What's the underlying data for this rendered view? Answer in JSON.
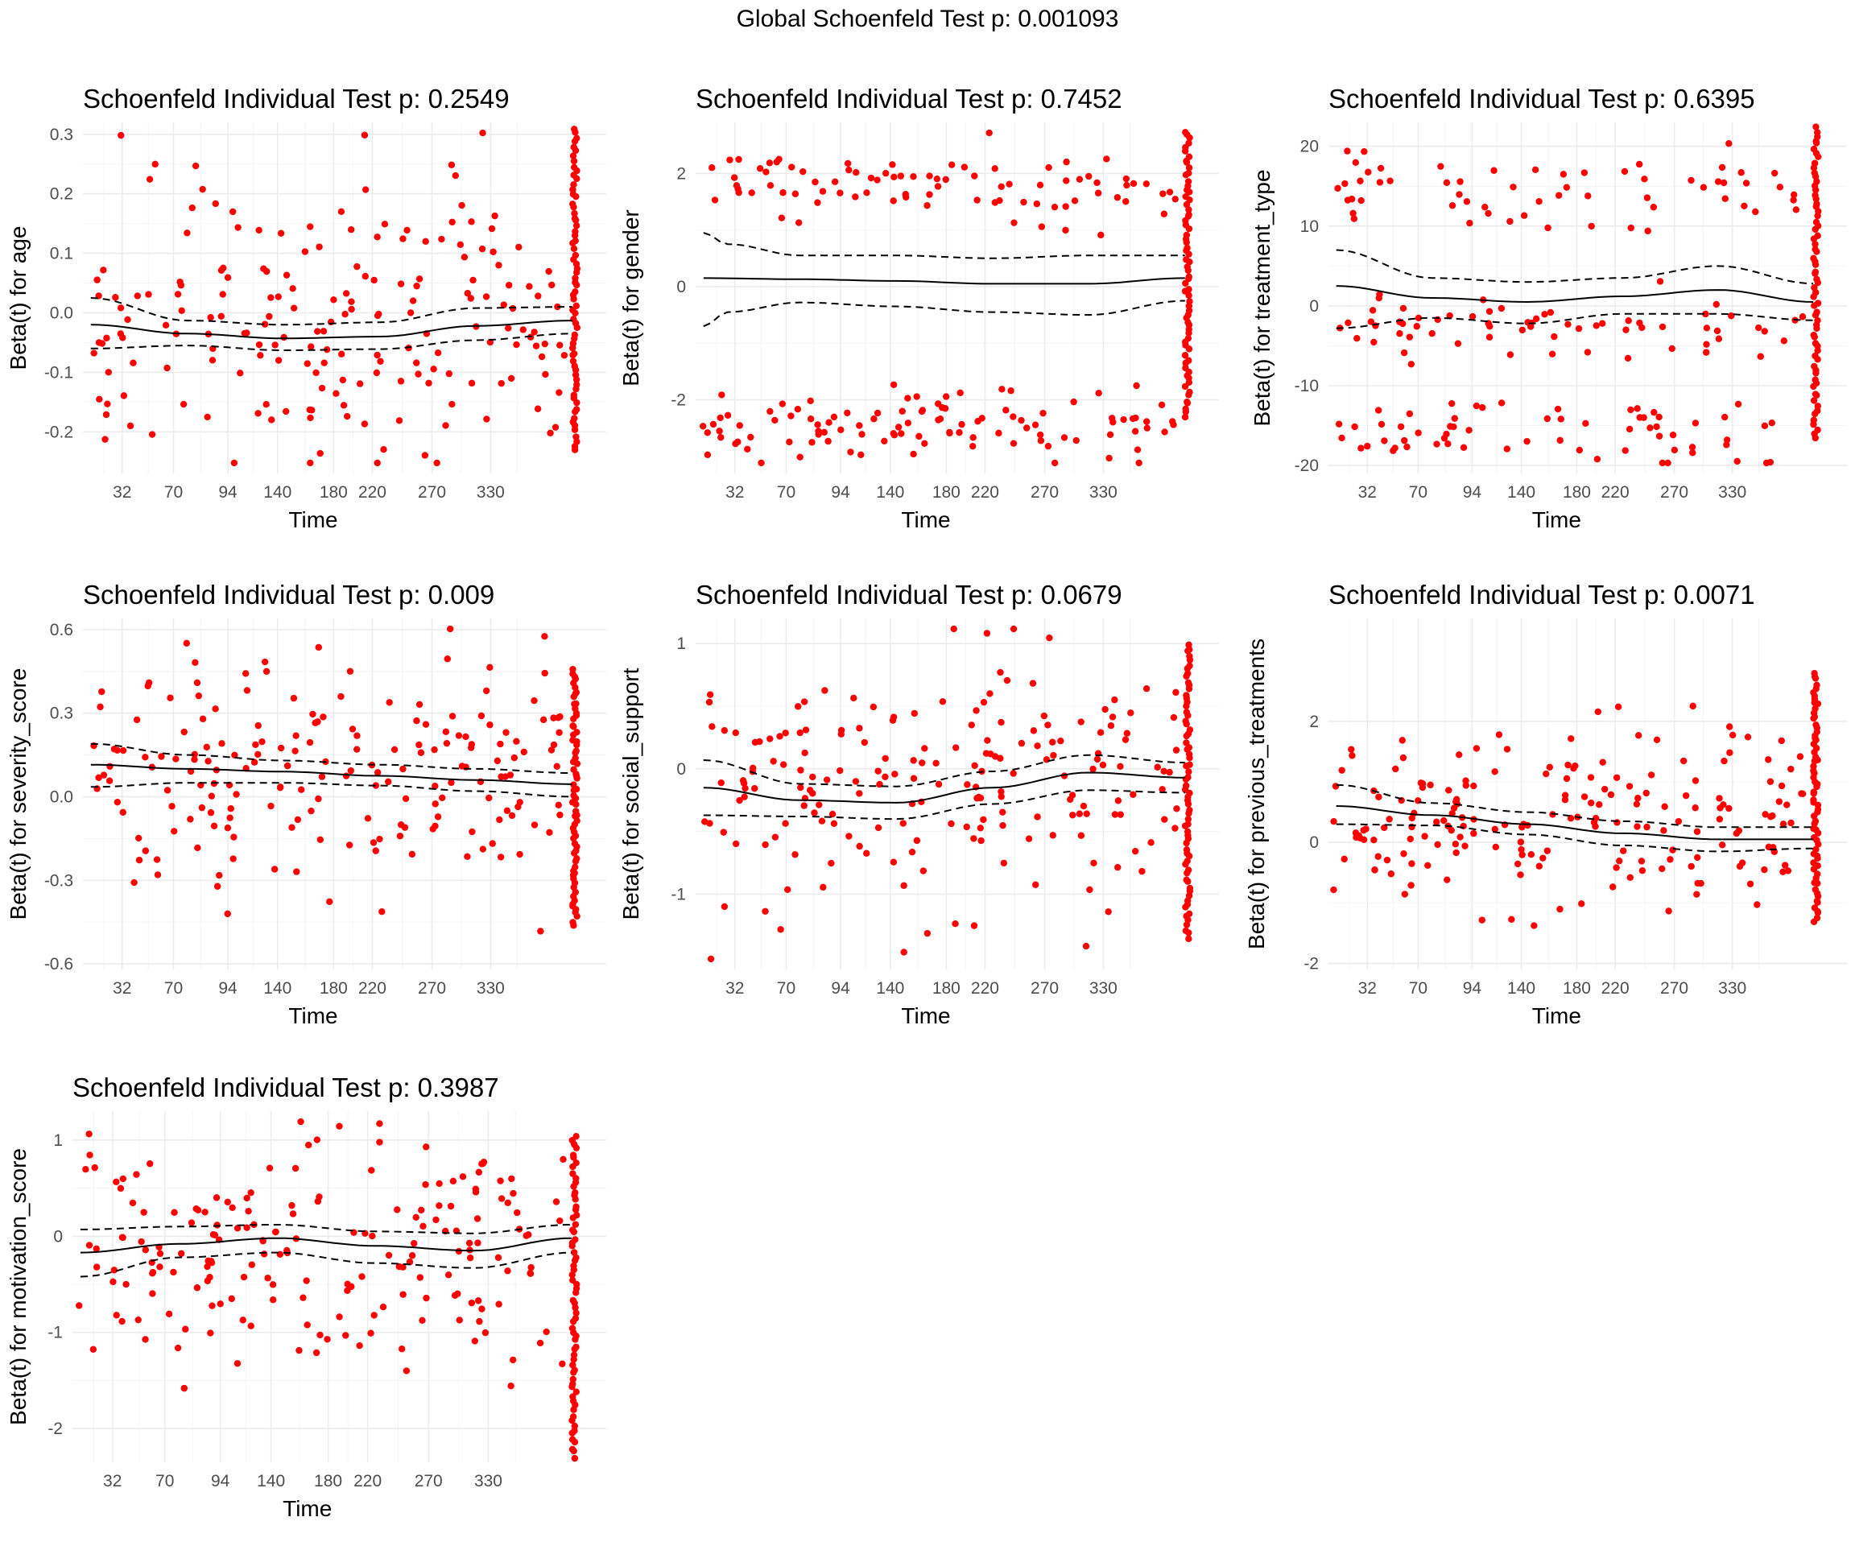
{
  "figure": {
    "title": "Global Schoenfeld Test p: 0.001093"
  },
  "chart_data": [
    {
      "type": "scatter",
      "title": "Schoenfeld Individual Test p: 0.2549",
      "xlabel": "Time",
      "ylabel": "Beta(t) for age",
      "x_ticks": [
        "32",
        "70",
        "94",
        "140",
        "180",
        "220",
        "270",
        "330"
      ],
      "y_ticks": [
        -0.2,
        -0.1,
        0.0,
        0.1,
        0.2,
        0.3
      ],
      "y_tick_labels": [
        "-0.2",
        "-0.1",
        "0.0",
        "0.1",
        "0.2",
        "0.3"
      ],
      "ylim": [
        -0.27,
        0.32
      ],
      "point_color": "#ff0000",
      "grid": true,
      "fit": {
        "x_ranks": [
          0,
          0.2,
          0.4,
          0.6,
          0.8,
          1.0
        ],
        "y": [
          -0.02,
          -0.035,
          -0.043,
          -0.04,
          -0.022,
          -0.013
        ]
      },
      "band_upper": {
        "x_ranks": [
          0,
          0.2,
          0.4,
          0.6,
          0.8,
          1.0
        ],
        "y": [
          0.025,
          -0.013,
          -0.02,
          -0.016,
          0.008,
          0.01
        ]
      },
      "band_lower": {
        "x_ranks": [
          0,
          0.2,
          0.4,
          0.6,
          0.8,
          1.0
        ],
        "y": [
          -0.06,
          -0.055,
          -0.063,
          -0.061,
          -0.046,
          -0.035
        ]
      },
      "band_style": "dashed",
      "points_seed": 11,
      "cluster_groups": [
        [
          0.04,
          0.13
        ],
        [
          -0.06,
          0.13
        ]
      ],
      "end_cluster_range": [
        -0.23,
        0.31
      ]
    },
    {
      "type": "scatter",
      "title": "Schoenfeld Individual Test p: 0.7452",
      "xlabel": "Time",
      "ylabel": "Beta(t) for gender",
      "x_ticks": [
        "32",
        "70",
        "94",
        "140",
        "180",
        "220",
        "270",
        "330"
      ],
      "y_ticks": [
        -2,
        0,
        2
      ],
      "y_tick_labels": [
        "-2",
        "0",
        "2"
      ],
      "ylim": [
        -3.3,
        2.9
      ],
      "point_color": "#ff0000",
      "grid": true,
      "fit": {
        "x_ranks": [
          0,
          0.2,
          0.4,
          0.6,
          0.8,
          1.0
        ],
        "y": [
          0.15,
          0.13,
          0.1,
          0.05,
          0.05,
          0.15
        ]
      },
      "band_upper": {
        "x_ranks": [
          0,
          0.05,
          0.2,
          0.4,
          0.6,
          0.8,
          1.0
        ],
        "y": [
          0.95,
          0.75,
          0.55,
          0.55,
          0.5,
          0.55,
          0.55
        ]
      },
      "band_lower": {
        "x_ranks": [
          0,
          0.05,
          0.2,
          0.4,
          0.6,
          0.8,
          1.0
        ],
        "y": [
          -0.7,
          -0.45,
          -0.28,
          -0.35,
          -0.45,
          -0.5,
          -0.25
        ]
      },
      "band_style": "dashed",
      "points_seed": 23,
      "cluster_groups": [
        [
          1.8,
          0.3
        ],
        [
          -2.5,
          0.3
        ]
      ],
      "end_cluster_range": [
        -2.3,
        2.75
      ]
    },
    {
      "type": "scatter",
      "title": "Schoenfeld Individual Test p: 0.6395",
      "xlabel": "Time",
      "ylabel": "Beta(t) for treatment_type",
      "x_ticks": [
        "32",
        "70",
        "94",
        "140",
        "180",
        "220",
        "270",
        "330"
      ],
      "y_ticks": [
        -20,
        -10,
        0,
        10,
        20
      ],
      "y_tick_labels": [
        "-20",
        "-10",
        "0",
        "10",
        "20"
      ],
      "ylim": [
        -21,
        23
      ],
      "point_color": "#ff0000",
      "grid": true,
      "fit": {
        "x_ranks": [
          0,
          0.2,
          0.4,
          0.6,
          0.8,
          1.0
        ],
        "y": [
          2.5,
          1.0,
          0.5,
          1.2,
          2.0,
          0.5
        ]
      },
      "band_upper": {
        "x_ranks": [
          0,
          0.2,
          0.4,
          0.6,
          0.8,
          1.0
        ],
        "y": [
          7.0,
          3.5,
          3.0,
          3.5,
          5.0,
          2.8
        ]
      },
      "band_lower": {
        "x_ranks": [
          0,
          0.2,
          0.4,
          0.6,
          0.8,
          1.0
        ],
        "y": [
          -2.8,
          -1.5,
          -2.2,
          -1.0,
          -1.0,
          -1.8
        ]
      },
      "band_style": "dashed",
      "points_seed": 37,
      "cluster_groups": [
        [
          15.5,
          3.0
        ],
        [
          -16.0,
          2.0
        ],
        [
          -3.0,
          2.5
        ]
      ],
      "end_cluster_range": [
        -16.5,
        22.5
      ]
    },
    {
      "type": "scatter",
      "title": "Schoenfeld Individual Test p: 0.009",
      "xlabel": "Time",
      "ylabel": "Beta(t) for severity_score",
      "x_ticks": [
        "32",
        "70",
        "94",
        "140",
        "180",
        "220",
        "270",
        "330"
      ],
      "y_ticks": [
        -0.6,
        -0.3,
        0.0,
        0.3,
        0.6
      ],
      "y_tick_labels": [
        "-0.6",
        "-0.3",
        "0.0",
        "0.3",
        "0.6"
      ],
      "ylim": [
        -0.62,
        0.64
      ],
      "point_color": "#ff0000",
      "grid": true,
      "fit": {
        "x_ranks": [
          0,
          0.2,
          0.4,
          0.6,
          0.8,
          1.0
        ],
        "y": [
          0.115,
          0.1,
          0.09,
          0.075,
          0.06,
          0.045
        ]
      },
      "band_upper": {
        "x_ranks": [
          0,
          0.2,
          0.4,
          0.6,
          0.8,
          1.0
        ],
        "y": [
          0.19,
          0.15,
          0.13,
          0.115,
          0.1,
          0.085
        ]
      },
      "band_lower": {
        "x_ranks": [
          0,
          0.2,
          0.4,
          0.6,
          0.8,
          1.0
        ],
        "y": [
          0.035,
          0.05,
          0.05,
          0.04,
          0.02,
          0.0
        ]
      },
      "band_style": "dashed",
      "points_seed": 41,
      "cluster_groups": [
        [
          0.09,
          0.2
        ]
      ],
      "end_cluster_range": [
        -0.46,
        0.46
      ]
    },
    {
      "type": "scatter",
      "title": "Schoenfeld Individual Test p: 0.0679",
      "xlabel": "Time",
      "ylabel": "Beta(t) for social_support",
      "x_ticks": [
        "32",
        "70",
        "94",
        "140",
        "180",
        "220",
        "270",
        "330"
      ],
      "y_ticks": [
        -1,
        0,
        1
      ],
      "y_tick_labels": [
        "-1",
        "0",
        "1"
      ],
      "ylim": [
        -1.6,
        1.2
      ],
      "point_color": "#ff0000",
      "grid": true,
      "fit": {
        "x_ranks": [
          0,
          0.2,
          0.4,
          0.6,
          0.8,
          1.0
        ],
        "y": [
          -0.15,
          -0.25,
          -0.27,
          -0.15,
          -0.03,
          -0.07
        ]
      },
      "band_upper": {
        "x_ranks": [
          0,
          0.2,
          0.4,
          0.6,
          0.8,
          1.0
        ],
        "y": [
          0.07,
          -0.12,
          -0.14,
          -0.02,
          0.11,
          0.05
        ]
      },
      "band_lower": {
        "x_ranks": [
          0,
          0.2,
          0.4,
          0.6,
          0.8,
          1.0
        ],
        "y": [
          -0.37,
          -0.38,
          -0.4,
          -0.28,
          -0.17,
          -0.19
        ]
      },
      "band_style": "dashed",
      "points_seed": 53,
      "cluster_groups": [
        [
          -0.15,
          0.55
        ]
      ],
      "end_cluster_range": [
        -1.35,
        1.0
      ]
    },
    {
      "type": "scatter",
      "title": "Schoenfeld Individual Test p: 0.0071",
      "xlabel": "Time",
      "ylabel": "Beta(t) for previous_treatments",
      "x_ticks": [
        "32",
        "70",
        "94",
        "140",
        "180",
        "220",
        "270",
        "330"
      ],
      "y_ticks": [
        -2,
        0,
        2
      ],
      "y_tick_labels": [
        "-2",
        "0",
        "2"
      ],
      "ylim": [
        -2.1,
        3.7
      ],
      "point_color": "#ff0000",
      "grid": true,
      "fit": {
        "x_ranks": [
          0,
          0.2,
          0.4,
          0.6,
          0.8,
          1.0
        ],
        "y": [
          0.6,
          0.45,
          0.3,
          0.15,
          0.05,
          0.05
        ]
      },
      "band_upper": {
        "x_ranks": [
          0,
          0.2,
          0.4,
          0.6,
          0.8,
          1.0
        ],
        "y": [
          0.95,
          0.65,
          0.5,
          0.35,
          0.25,
          0.25
        ]
      },
      "band_lower": {
        "x_ranks": [
          0,
          0.2,
          0.4,
          0.6,
          0.8,
          1.0
        ],
        "y": [
          0.3,
          0.28,
          0.13,
          -0.05,
          -0.15,
          -0.1
        ]
      },
      "band_style": "dashed",
      "points_seed": 67,
      "cluster_groups": [
        [
          0.25,
          0.75
        ]
      ],
      "end_cluster_range": [
        -1.3,
        2.8
      ]
    },
    {
      "type": "scatter",
      "title": "Schoenfeld Individual Test p: 0.3987",
      "xlabel": "Time",
      "ylabel": "Beta(t) for motivation_score",
      "x_ticks": [
        "32",
        "70",
        "94",
        "140",
        "180",
        "220",
        "270",
        "330"
      ],
      "y_ticks": [
        -2,
        -1,
        0,
        1
      ],
      "y_tick_labels": [
        "-2",
        "-1",
        "0",
        "1"
      ],
      "ylim": [
        -2.35,
        1.3
      ],
      "point_color": "#ff0000",
      "grid": true,
      "fit": {
        "x_ranks": [
          0,
          0.2,
          0.4,
          0.6,
          0.8,
          1.0
        ],
        "y": [
          -0.17,
          -0.08,
          -0.02,
          -0.1,
          -0.15,
          -0.02
        ]
      },
      "band_upper": {
        "x_ranks": [
          0,
          0.2,
          0.4,
          0.6,
          0.8,
          1.0
        ],
        "y": [
          0.07,
          0.1,
          0.12,
          0.05,
          0.03,
          0.12
        ]
      },
      "band_lower": {
        "x_ranks": [
          0,
          0.2,
          0.4,
          0.6,
          0.8,
          1.0
        ],
        "y": [
          -0.42,
          -0.22,
          -0.17,
          -0.28,
          -0.33,
          -0.17
        ]
      },
      "band_style": "dashed",
      "points_seed": 79,
      "cluster_groups": [
        [
          -0.1,
          0.6
        ]
      ],
      "end_cluster_range": [
        -2.3,
        1.05
      ]
    }
  ]
}
